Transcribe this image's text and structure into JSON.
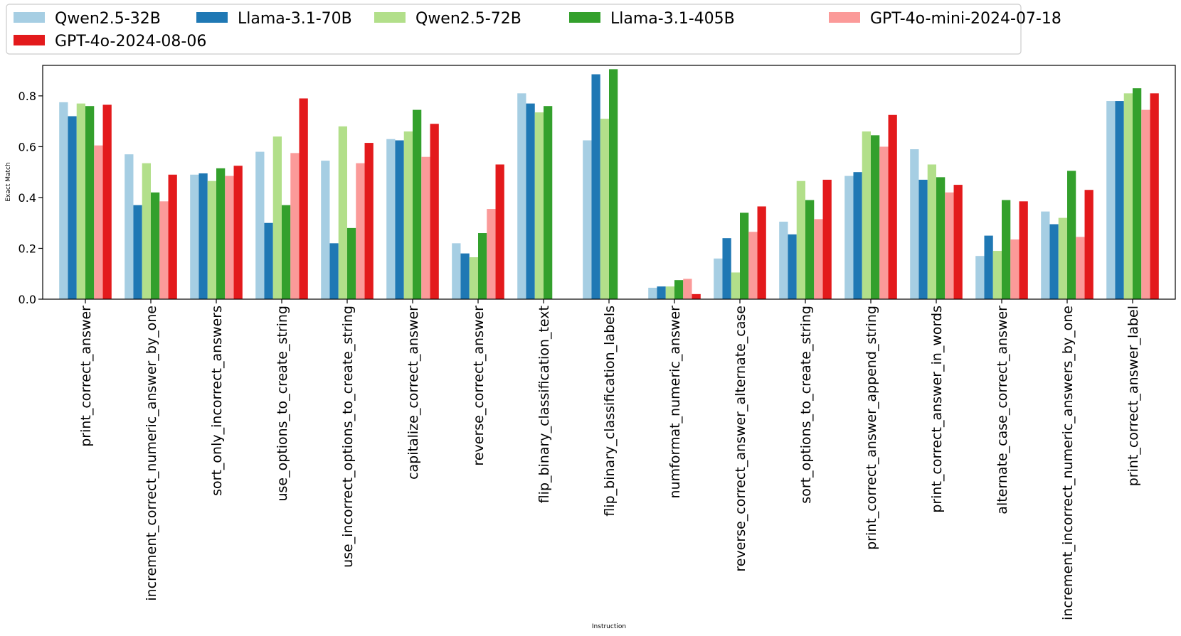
{
  "chart_data": {
    "type": "bar",
    "title": "",
    "xlabel": "Instruction",
    "ylabel": "Exact Match",
    "ylim": [
      0,
      0.92
    ],
    "yticks": [
      "0.0",
      "0.2",
      "0.4",
      "0.6",
      "0.8"
    ],
    "legend_position": "top-left",
    "categories": [
      "print_correct_answer",
      "increment_correct_numeric_answer_by_one",
      "sort_only_incorrect_answers",
      "use_options_to_create_string",
      "use_incorrect_options_to_create_string",
      "capitalize_correct_answer",
      "reverse_correct_answer",
      "flip_binary_classification_text",
      "flip_binary_classification_labels",
      "numformat_numeric_answer",
      "reverse_correct_answer_alternate_case",
      "sort_options_to_create_string",
      "print_correct_answer_append_string",
      "print_correct_answer_in_words",
      "alternate_case_correct_answer",
      "increment_incorrect_numeric_answers_by_one",
      "print_correct_answer_label"
    ],
    "series": [
      {
        "name": "Qwen2.5-32B",
        "color": "#a6cee3",
        "values": [
          0.775,
          0.57,
          0.49,
          0.58,
          0.545,
          0.63,
          0.22,
          0.81,
          0.625,
          0.045,
          0.16,
          0.305,
          0.485,
          0.59,
          0.17,
          0.345,
          0.78
        ]
      },
      {
        "name": "Llama-3.1-70B",
        "color": "#1f78b4",
        "values": [
          0.72,
          0.37,
          0.495,
          0.3,
          0.22,
          0.625,
          0.18,
          0.77,
          0.885,
          0.05,
          0.24,
          0.255,
          0.5,
          0.47,
          0.25,
          0.295,
          0.78
        ]
      },
      {
        "name": "Qwen2.5-72B",
        "color": "#b2df8a",
        "values": [
          0.77,
          0.535,
          0.465,
          0.64,
          0.68,
          0.66,
          0.165,
          0.735,
          0.71,
          0.05,
          0.105,
          0.465,
          0.66,
          0.53,
          0.19,
          0.32,
          0.81
        ]
      },
      {
        "name": "Llama-3.1-405B",
        "color": "#33a02c",
        "values": [
          0.76,
          0.42,
          0.515,
          0.37,
          0.28,
          0.745,
          0.26,
          0.76,
          0.905,
          0.075,
          0.34,
          0.39,
          0.645,
          0.48,
          0.39,
          0.505,
          0.83
        ]
      },
      {
        "name": "GPT-4o-mini-2024-07-18",
        "color": "#fb9a99",
        "values": [
          0.605,
          0.385,
          0.485,
          0.575,
          0.535,
          0.56,
          0.355,
          null,
          null,
          0.08,
          0.265,
          0.315,
          0.6,
          0.42,
          0.235,
          0.245,
          0.745
        ]
      },
      {
        "name": "GPT-4o-2024-08-06",
        "color": "#e31a1c",
        "values": [
          0.765,
          0.49,
          0.525,
          0.79,
          0.615,
          0.69,
          0.53,
          null,
          null,
          0.02,
          0.365,
          0.47,
          0.725,
          0.45,
          0.385,
          0.43,
          0.81
        ]
      }
    ]
  }
}
